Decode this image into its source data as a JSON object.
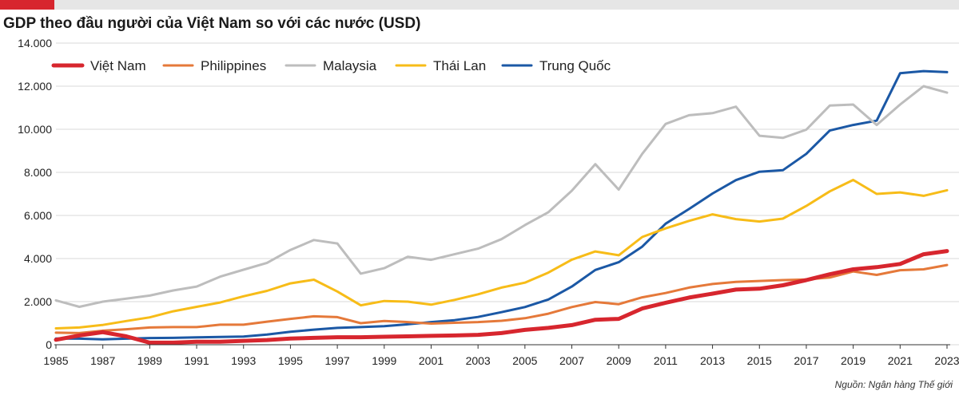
{
  "chart_data": {
    "type": "line",
    "title": "GDP theo đầu người của Việt Nam so với các nước (USD)",
    "source": "Nguồn: Ngân hàng Thế giới",
    "xlabel": "",
    "ylabel": "",
    "ylim": [
      0,
      14000
    ],
    "yticks": [
      0,
      2000,
      4000,
      6000,
      8000,
      10000,
      12000,
      14000
    ],
    "ytick_labels": [
      "0",
      "2.000",
      "4.000",
      "6.000",
      "8.000",
      "10.000",
      "12.000",
      "14.000"
    ],
    "xlim": [
      1985,
      2023
    ],
    "xticks": [
      1985,
      1987,
      1989,
      1991,
      1993,
      1995,
      1997,
      1999,
      2001,
      2003,
      2005,
      2007,
      2009,
      2011,
      2013,
      2015,
      2017,
      2019,
      2021,
      2023
    ],
    "grid": "horizontal",
    "legend_position": "top-left",
    "x": [
      1985,
      1986,
      1987,
      1988,
      1989,
      1990,
      1991,
      1992,
      1993,
      1994,
      1995,
      1996,
      1997,
      1998,
      1999,
      2000,
      2001,
      2002,
      2003,
      2004,
      2005,
      2006,
      2007,
      2008,
      2009,
      2010,
      2011,
      2012,
      2013,
      2014,
      2015,
      2016,
      2017,
      2018,
      2019,
      2020,
      2021,
      2022,
      2023
    ],
    "series": [
      {
        "name": "Việt Nam",
        "color": "#d7262e",
        "width": 5,
        "values": [
          230,
          430,
          580,
          390,
          95,
          95,
          140,
          140,
          180,
          220,
          290,
          320,
          350,
          350,
          370,
          390,
          410,
          430,
          460,
          540,
          690,
          780,
          910,
          1160,
          1200,
          1680,
          1950,
          2190,
          2370,
          2560,
          2600,
          2760,
          3000,
          3270,
          3500,
          3600,
          3750,
          4200,
          4350
        ]
      },
      {
        "name": "Philippines",
        "color": "#e5793a",
        "width": 3,
        "values": [
          560,
          540,
          650,
          720,
          800,
          820,
          820,
          930,
          930,
          1070,
          1200,
          1320,
          1280,
          1000,
          1100,
          1050,
          980,
          1020,
          1050,
          1110,
          1230,
          1440,
          1750,
          1980,
          1880,
          2200,
          2400,
          2650,
          2820,
          2920,
          2960,
          3000,
          3030,
          3120,
          3400,
          3240,
          3460,
          3500,
          3700
        ]
      },
      {
        "name": "Malaysia",
        "color": "#bdbdbd",
        "width": 3,
        "values": [
          2060,
          1760,
          2000,
          2140,
          2280,
          2520,
          2700,
          3160,
          3480,
          3800,
          4400,
          4860,
          4700,
          3300,
          3550,
          4080,
          3940,
          4200,
          4460,
          4900,
          5550,
          6150,
          7150,
          8380,
          7200,
          8860,
          10250,
          10650,
          10750,
          11050,
          9700,
          9600,
          9980,
          11100,
          11150,
          10200,
          11150,
          12000,
          11700
        ]
      },
      {
        "name": "Thái Lan",
        "color": "#f7bc18",
        "width": 3,
        "values": [
          760,
          800,
          920,
          1100,
          1270,
          1550,
          1760,
          1960,
          2250,
          2500,
          2850,
          3020,
          2470,
          1830,
          2030,
          2000,
          1860,
          2080,
          2340,
          2650,
          2880,
          3350,
          3950,
          4330,
          4150,
          5000,
          5400,
          5750,
          6050,
          5830,
          5720,
          5850,
          6440,
          7120,
          7650,
          7000,
          7070,
          6910,
          7170
        ]
      },
      {
        "name": "Trung Quốc",
        "color": "#1b58a5",
        "width": 3,
        "values": [
          290,
          280,
          250,
          280,
          310,
          320,
          340,
          360,
          380,
          470,
          600,
          700,
          780,
          820,
          860,
          950,
          1050,
          1140,
          1290,
          1510,
          1750,
          2100,
          2700,
          3470,
          3830,
          4550,
          5620,
          6300,
          7020,
          7640,
          8030,
          8100,
          8860,
          9940,
          10200,
          10400,
          12600,
          12700,
          12650
        ]
      }
    ]
  }
}
